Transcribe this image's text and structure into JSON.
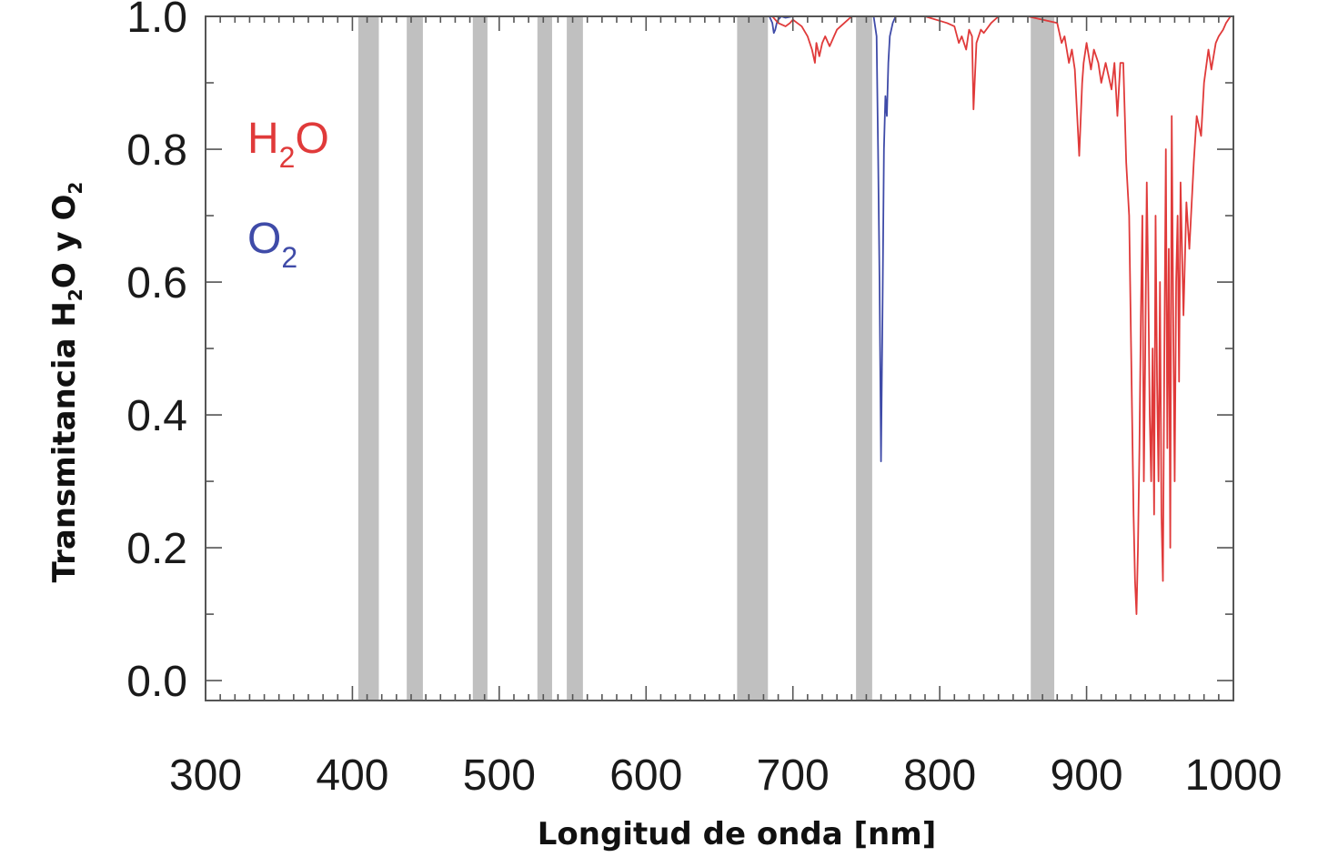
{
  "chart_data": {
    "type": "line",
    "xlabel": "Longitud de onda [nm]",
    "ylabel": {
      "base": "Transmitancia H",
      "sub1": "2",
      "mid": "O y O",
      "sub2": "2"
    },
    "xlim": [
      300,
      1000
    ],
    "ylim": [
      -0.03,
      1.0
    ],
    "x_ticks": [
      300,
      400,
      500,
      600,
      700,
      800,
      900,
      1000
    ],
    "x_tick_labels": [
      "300",
      "400",
      "500",
      "600",
      "700",
      "800",
      "900",
      "1000"
    ],
    "y_ticks": [
      0.0,
      0.2,
      0.4,
      0.6,
      0.8,
      1.0
    ],
    "y_tick_labels": [
      "0.0",
      "0.2",
      "0.4",
      "0.6",
      "0.8",
      "1.0"
    ],
    "grid": false,
    "legend_placement": "top-left",
    "shaded_bands": [
      [
        404,
        418
      ],
      [
        437,
        448
      ],
      [
        482,
        492
      ],
      [
        526,
        536
      ],
      [
        546,
        557
      ],
      [
        662,
        683
      ],
      [
        743,
        754
      ],
      [
        862,
        878
      ]
    ],
    "band_color": "#c0c0c0",
    "series": [
      {
        "name_parts": {
          "base": "H",
          "sub": "2",
          "tail": "O"
        },
        "color": "#e03a3a",
        "x": [
          300,
          686,
          690,
          695,
          698,
          700,
          703,
          706,
          710,
          713,
          715,
          716,
          718,
          720,
          722,
          725,
          728,
          730,
          735,
          740,
          760,
          790,
          805,
          810,
          813,
          815,
          818,
          820,
          822,
          823,
          825,
          828,
          830,
          835,
          840,
          860,
          880,
          883,
          885,
          888,
          890,
          892,
          895,
          897,
          898,
          900,
          903,
          905,
          908,
          910,
          913,
          915,
          917,
          919,
          921,
          923,
          925,
          927,
          929,
          930,
          931,
          932,
          933,
          934,
          935,
          936,
          937,
          938,
          939,
          940,
          941,
          942,
          943,
          944,
          945,
          946,
          947,
          948,
          949,
          950,
          951,
          952,
          953,
          954,
          955,
          956,
          957,
          958,
          959,
          960,
          961,
          962,
          963,
          964,
          966,
          968,
          970,
          973,
          975,
          978,
          980,
          983,
          985,
          988,
          990,
          993,
          995,
          998,
          1000
        ],
        "y": [
          1.0,
          1.0,
          0.99,
          0.985,
          0.99,
          0.995,
          0.99,
          0.985,
          0.97,
          0.95,
          0.93,
          0.96,
          0.94,
          0.96,
          0.97,
          0.955,
          0.97,
          0.98,
          0.99,
          1.0,
          1.0,
          1.0,
          0.99,
          0.985,
          0.96,
          0.97,
          0.95,
          0.98,
          0.97,
          0.86,
          0.96,
          0.98,
          0.975,
          0.99,
          1.0,
          1.0,
          0.99,
          0.96,
          0.97,
          0.93,
          0.95,
          0.92,
          0.79,
          0.9,
          0.93,
          0.96,
          0.92,
          0.95,
          0.93,
          0.9,
          0.93,
          0.91,
          0.89,
          0.93,
          0.85,
          0.93,
          0.93,
          0.78,
          0.7,
          0.55,
          0.4,
          0.25,
          0.15,
          0.1,
          0.2,
          0.35,
          0.55,
          0.7,
          0.3,
          0.5,
          0.75,
          0.6,
          0.4,
          0.3,
          0.5,
          0.25,
          0.7,
          0.45,
          0.3,
          0.6,
          0.25,
          0.15,
          0.5,
          0.8,
          0.35,
          0.65,
          0.2,
          0.85,
          0.55,
          0.3,
          0.6,
          0.7,
          0.45,
          0.75,
          0.55,
          0.72,
          0.65,
          0.78,
          0.85,
          0.82,
          0.9,
          0.95,
          0.92,
          0.96,
          0.97,
          0.98,
          0.99,
          1.0,
          1.0
        ]
      },
      {
        "name_parts": {
          "base": "O",
          "sub": "2",
          "tail": ""
        },
        "color": "#3f4ba8",
        "x": [
          300,
          684,
          686,
          687,
          688,
          689,
          690,
          692,
          695,
          700,
          755,
          757,
          758,
          759,
          760,
          761,
          762,
          763,
          764,
          765,
          766,
          768,
          770,
          780,
          1000
        ],
        "y": [
          1.0,
          1.0,
          0.99,
          0.975,
          0.98,
          0.99,
          0.995,
          1.0,
          0.998,
          1.0,
          1.0,
          0.97,
          0.8,
          0.6,
          0.33,
          0.55,
          0.8,
          0.88,
          0.85,
          0.93,
          0.97,
          0.99,
          1.0,
          1.0,
          1.0
        ]
      }
    ]
  }
}
